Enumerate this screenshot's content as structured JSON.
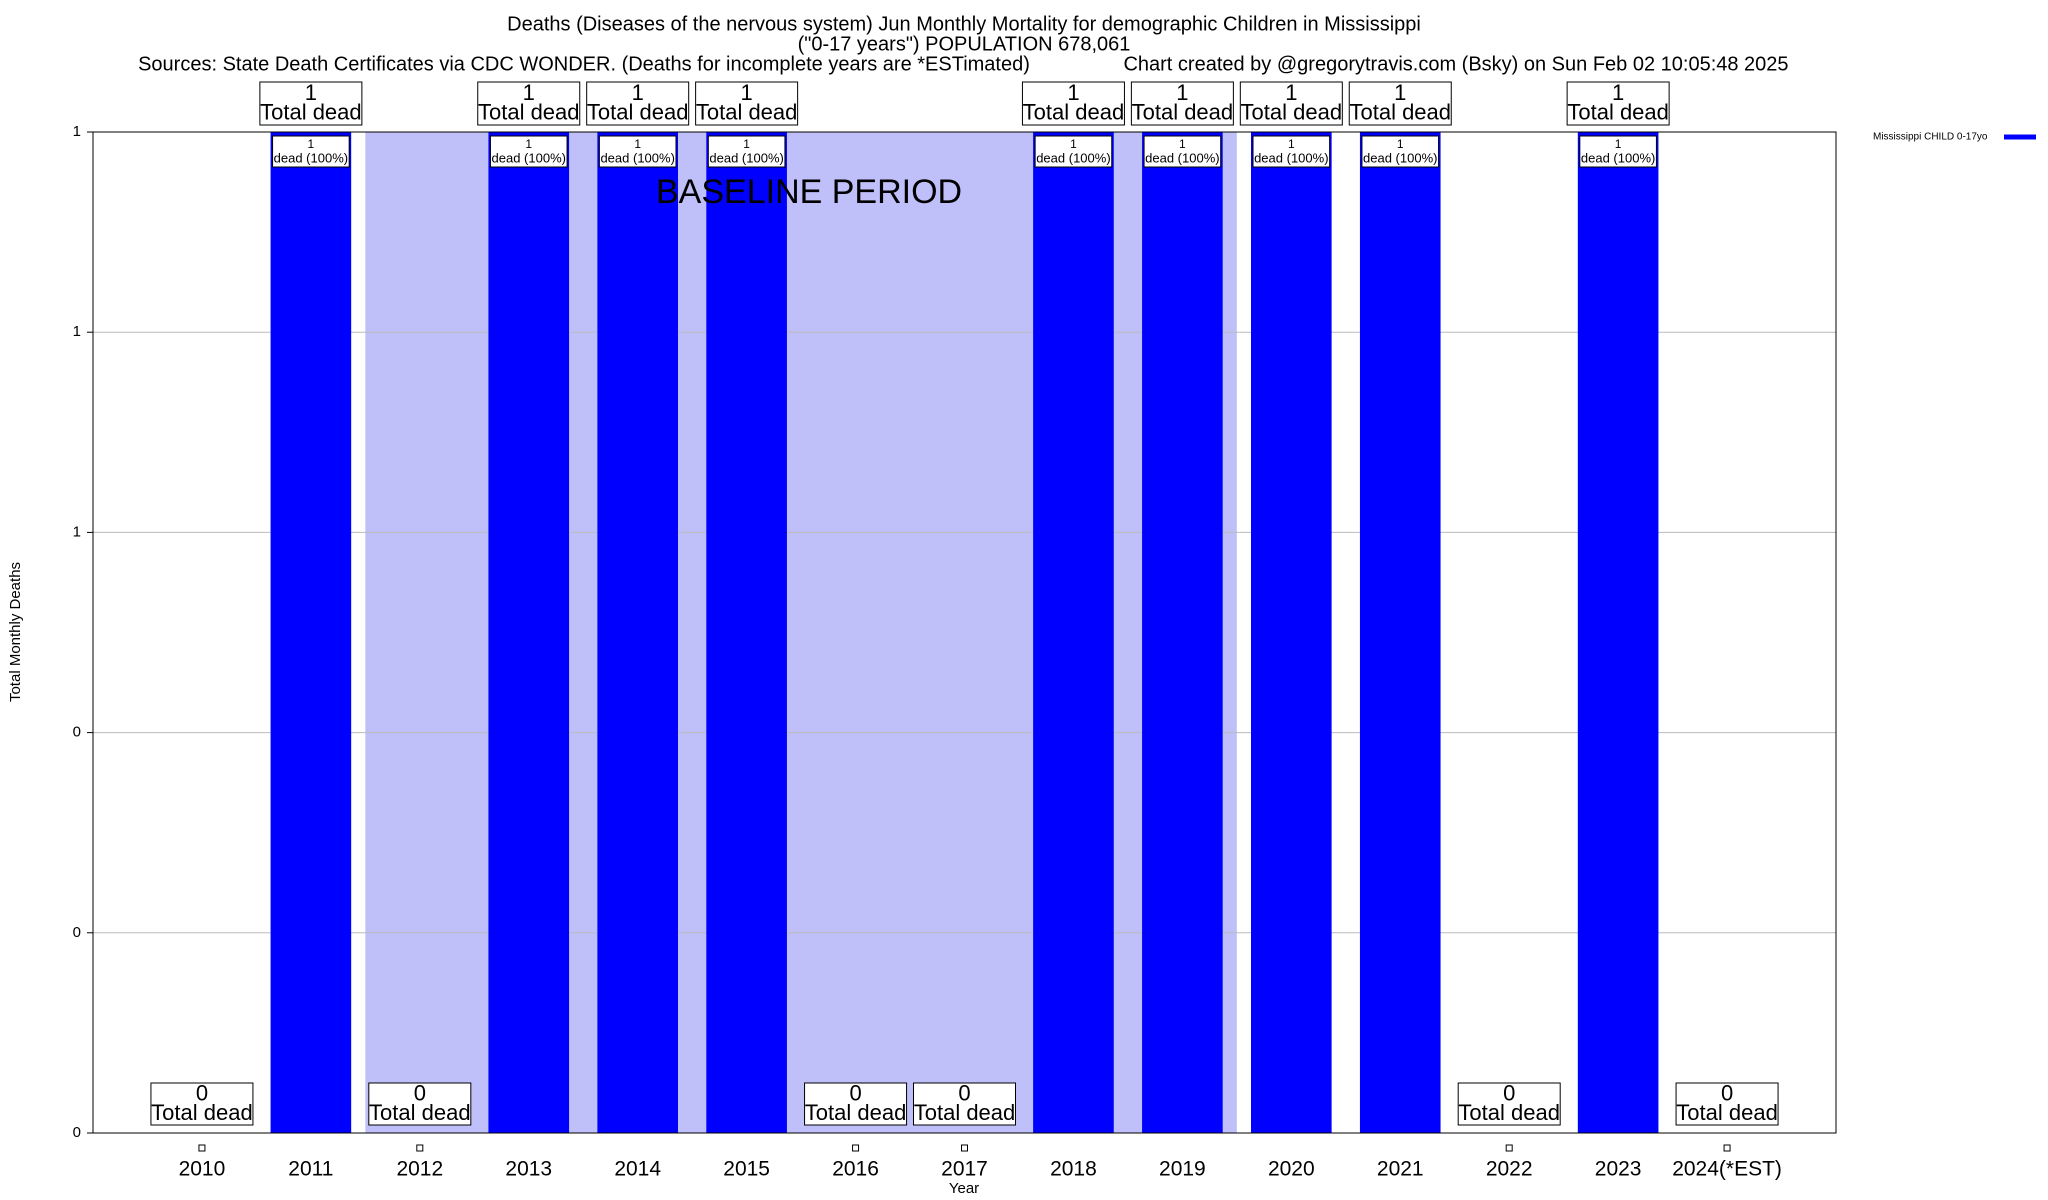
{
  "chart_data": {
    "type": "bar",
    "title": "Deaths (Diseases of the nervous system) Jun Monthly Mortality for demographic Children in Mississippi",
    "subtitle": "(\"0-17 years\") POPULATION 678,061",
    "sources": "Sources: State Death Certificates via CDC WONDER. (Deaths for incomplete years are *ESTimated)",
    "credit": "Chart created by @gregorytravis.com (Bsky) on Sun Feb 02 10:05:48 2025",
    "x_label": "Year",
    "y_label": "Total Monthly Deaths",
    "categories": [
      "2010",
      "2011",
      "2012",
      "2013",
      "2014",
      "2015",
      "2016",
      "2017",
      "2018",
      "2019",
      "2020",
      "2021",
      "2022",
      "2023",
      "2024(*EST)"
    ],
    "series": [
      {
        "name": "Mississippi CHILD 0-17yo",
        "color": "#0000ff",
        "values": [
          0,
          1,
          0,
          1,
          1,
          1,
          0,
          0,
          1,
          1,
          1,
          1,
          0,
          1,
          0
        ]
      }
    ],
    "total_label": "Total dead",
    "inner_label": "dead (100%)",
    "baseline_period": {
      "label": "BASELINE PERIOD",
      "start": "2012",
      "end": "2019",
      "color": "#bfbff9"
    },
    "ylim": [
      0,
      1
    ],
    "yticks": [
      0,
      {
        "value": 0.2,
        "label": "0"
      },
      {
        "value": 0.4,
        "label": "0"
      },
      {
        "value": 0.6,
        "label": "1"
      },
      {
        "value": 0.8,
        "label": "1"
      },
      1
    ],
    "grid": true,
    "legend": "outside-top-right"
  }
}
